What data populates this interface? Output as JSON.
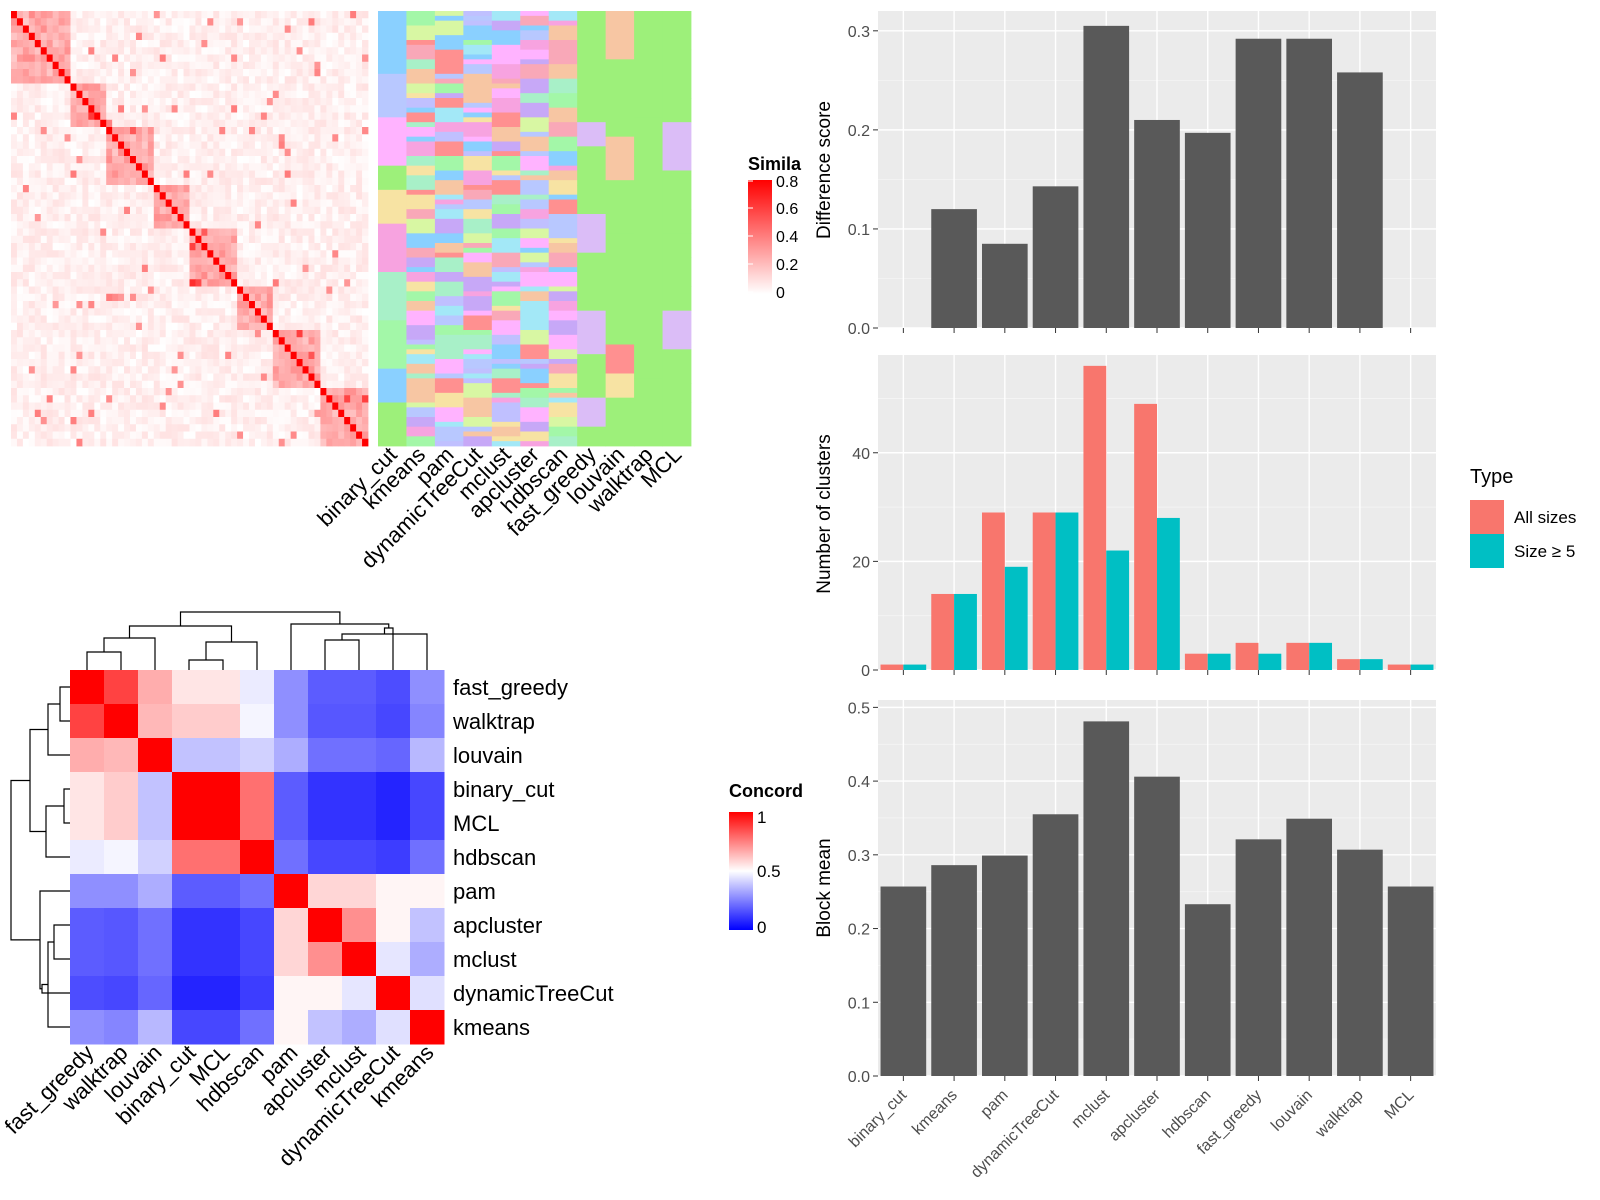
{
  "similarity_heatmap": {
    "legend_title": "Simila",
    "legend_ticks": [
      "0.8",
      "0.6",
      "0.4",
      "0.2",
      "0"
    ]
  },
  "membership_panel": {
    "methods": [
      "binary_cut",
      "kmeans",
      "pam",
      "dynamicTreeCut",
      "mclust",
      "apcluster",
      "hdbscan",
      "fast_greedy",
      "louvain",
      "walktrap",
      "MCL"
    ]
  },
  "concordance_heatmap": {
    "legend_title": "Concord",
    "legend_ticks": [
      "1",
      "0.5",
      "0"
    ],
    "order": [
      "fast_greedy",
      "walktrap",
      "louvain",
      "binary_cut",
      "MCL",
      "hdbscan",
      "pam",
      "apcluster",
      "mclust",
      "dynamicTreeCut",
      "kmeans"
    ],
    "matrix": [
      [
        1.0,
        0.87,
        0.66,
        0.55,
        0.55,
        0.46,
        0.28,
        0.18,
        0.18,
        0.15,
        0.28
      ],
      [
        0.87,
        1.0,
        0.64,
        0.6,
        0.6,
        0.48,
        0.28,
        0.17,
        0.17,
        0.14,
        0.26
      ],
      [
        0.66,
        0.64,
        1.0,
        0.38,
        0.38,
        0.41,
        0.34,
        0.22,
        0.22,
        0.2,
        0.36
      ],
      [
        0.55,
        0.6,
        0.38,
        1.0,
        1.0,
        0.78,
        0.18,
        0.1,
        0.1,
        0.07,
        0.14
      ],
      [
        0.55,
        0.6,
        0.38,
        1.0,
        1.0,
        0.78,
        0.18,
        0.1,
        0.1,
        0.07,
        0.14
      ],
      [
        0.46,
        0.48,
        0.41,
        0.78,
        0.78,
        1.0,
        0.22,
        0.14,
        0.14,
        0.12,
        0.22
      ],
      [
        0.28,
        0.28,
        0.34,
        0.18,
        0.18,
        0.22,
        1.0,
        0.58,
        0.58,
        0.52,
        0.52
      ],
      [
        0.18,
        0.17,
        0.22,
        0.1,
        0.1,
        0.14,
        0.58,
        1.0,
        0.72,
        0.52,
        0.38
      ],
      [
        0.18,
        0.17,
        0.22,
        0.1,
        0.1,
        0.14,
        0.58,
        0.72,
        1.0,
        0.45,
        0.34
      ],
      [
        0.15,
        0.14,
        0.2,
        0.07,
        0.07,
        0.12,
        0.52,
        0.52,
        0.45,
        1.0,
        0.44
      ],
      [
        0.28,
        0.26,
        0.36,
        0.14,
        0.14,
        0.22,
        0.52,
        0.38,
        0.34,
        0.44,
        1.0
      ]
    ]
  },
  "chart_data": [
    {
      "type": "bar",
      "categories": [
        "binary_cut",
        "kmeans",
        "pam",
        "dynamicTreeCut",
        "mclust",
        "apcluster",
        "hdbscan",
        "fast_greedy",
        "louvain",
        "walktrap",
        "MCL"
      ],
      "values": [
        0,
        0.12,
        0.085,
        0.143,
        0.305,
        0.21,
        0.197,
        0.292,
        0.292,
        0.258,
        0
      ],
      "title": "",
      "xlabel": "",
      "ylabel": "Difference score",
      "ylim": [
        0,
        0.32
      ],
      "yticks": [
        "0.0",
        "0.1",
        "0.2",
        "0.3"
      ],
      "grid": true
    },
    {
      "type": "bar",
      "categories": [
        "binary_cut",
        "kmeans",
        "pam",
        "dynamicTreeCut",
        "mclust",
        "apcluster",
        "hdbscan",
        "fast_greedy",
        "louvain",
        "walktrap",
        "MCL"
      ],
      "series": [
        {
          "name": "All sizes",
          "color": "#F8766D",
          "values": [
            1,
            14,
            29,
            29,
            56,
            49,
            3,
            5,
            5,
            2,
            1
          ]
        },
        {
          "name": "Size ≥ 5",
          "color": "#00BFC4",
          "values": [
            1,
            14,
            19,
            29,
            22,
            28,
            3,
            3,
            5,
            2,
            1
          ]
        }
      ],
      "title": "",
      "xlabel": "",
      "ylabel": "Number of clusters",
      "ylim": [
        0,
        58
      ],
      "yticks": [
        "0",
        "20",
        "40"
      ],
      "legend_title": "Type",
      "legend_position": "right",
      "grid": true
    },
    {
      "type": "bar",
      "categories": [
        "binary_cut",
        "kmeans",
        "pam",
        "dynamicTreeCut",
        "mclust",
        "apcluster",
        "hdbscan",
        "fast_greedy",
        "louvain",
        "walktrap",
        "MCL"
      ],
      "values": [
        0.257,
        0.286,
        0.299,
        0.355,
        0.481,
        0.406,
        0.233,
        0.321,
        0.349,
        0.307,
        0.257
      ],
      "title": "",
      "xlabel": "",
      "ylabel": "Block mean",
      "ylim": [
        0,
        0.51
      ],
      "yticks": [
        "0.0",
        "0.1",
        "0.2",
        "0.3",
        "0.4",
        "0.5"
      ],
      "grid": true
    }
  ]
}
